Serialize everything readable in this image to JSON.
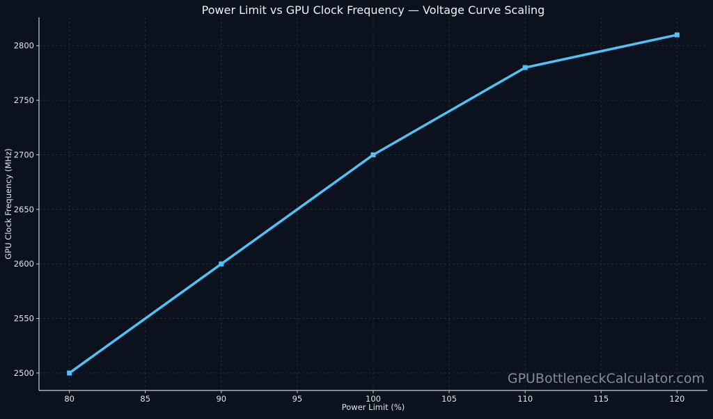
{
  "chart_data": {
    "type": "line",
    "title": "Power Limit vs GPU Clock Frequency — Voltage Curve Scaling",
    "xlabel": "Power Limit (%)",
    "ylabel": "GPU Clock Frequency (MHz)",
    "x": [
      80,
      90,
      100,
      110,
      120
    ],
    "series": [
      {
        "values": [
          2500,
          2600,
          2700,
          2780,
          2810
        ],
        "color": "#4fc3f7",
        "marker": "square"
      }
    ],
    "xlim": [
      78,
      122
    ],
    "ylim": [
      2484,
      2826
    ],
    "xticks": [
      80,
      85,
      90,
      95,
      100,
      105,
      110,
      115,
      120
    ],
    "yticks": [
      2500,
      2550,
      2600,
      2650,
      2700,
      2750,
      2800
    ],
    "grid": true,
    "background": "#0b121d",
    "watermark": "GPUBottleneckCalculator.com"
  }
}
